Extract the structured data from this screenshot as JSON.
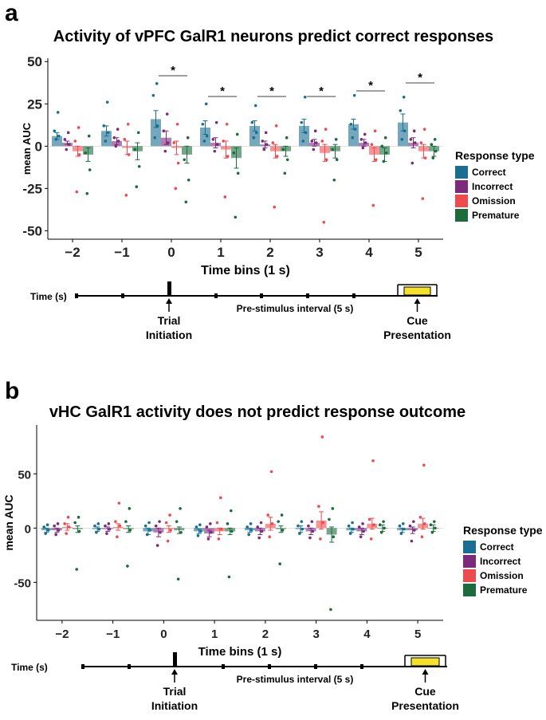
{
  "response_types": {
    "colors": {
      "Correct": "#1a6e91",
      "Incorrect": "#7b2a7c",
      "Omission": "#ee4b4f",
      "Premature": "#1b6b3c"
    }
  },
  "chart_data": [
    {
      "type": "bar",
      "panel": "a",
      "title": "Activity of vPFC GalR1 neurons predict correct responses",
      "xlabel": "Time bins (1 s)",
      "ylabel": "mean AUC",
      "ylim": [
        -55,
        52
      ],
      "yticks": [
        50,
        25,
        0,
        -25,
        -50
      ],
      "yticklabels": [
        "50",
        "25",
        "0",
        "-25",
        "-50"
      ],
      "categories": [
        "−2",
        "−1",
        "0",
        "1",
        "2",
        "3",
        "4",
        "5"
      ],
      "legend_title": "Response type",
      "legend_position": "right",
      "series": [
        {
          "name": "Correct",
          "values": [
            6,
            9,
            16,
            11,
            12,
            12,
            13,
            14
          ],
          "err": [
            2,
            3,
            5,
            4,
            3,
            4,
            3,
            5
          ],
          "points": [
            [
              4,
              6,
              9,
              20
            ],
            [
              3,
              8,
              12,
              26
            ],
            [
              5,
              12,
              30,
              37
            ],
            [
              3,
              6,
              13,
              25
            ],
            [
              5,
              8,
              14,
              24
            ],
            [
              3,
              8,
              14,
              29
            ],
            [
              5,
              10,
              13,
              30
            ],
            [
              4,
              9,
              21,
              29
            ]
          ]
        },
        {
          "name": "Incorrect",
          "values": [
            2,
            3,
            5,
            2,
            1,
            2,
            2,
            2
          ],
          "err": [
            1,
            2,
            4,
            3,
            2,
            2,
            2,
            3
          ],
          "points": [
            [
              -2,
              1,
              4,
              8
            ],
            [
              0,
              3,
              5,
              10
            ],
            [
              -3,
              2,
              9,
              19
            ],
            [
              -3,
              1,
              4,
              14
            ],
            [
              -2,
              1,
              3,
              8
            ],
            [
              -2,
              2,
              3,
              9
            ],
            [
              -1,
              2,
              4,
              7
            ],
            [
              -10,
              2,
              4,
              9
            ]
          ]
        },
        {
          "name": "Omission",
          "values": [
            -3,
            -1,
            -1,
            -2,
            -3,
            -4,
            -5,
            -3
          ],
          "err": [
            3,
            4,
            4,
            5,
            4,
            5,
            4,
            4
          ],
          "points": [
            [
              -27,
              -5,
              3,
              11
            ],
            [
              -29,
              -5,
              4,
              13
            ],
            [
              -25,
              -10,
              2,
              13
            ],
            [
              -30,
              -6,
              3,
              13
            ],
            [
              -36,
              -6,
              2,
              12
            ],
            [
              -45,
              -8,
              3,
              10
            ],
            [
              -35,
              -8,
              1,
              9
            ],
            [
              -31,
              -7,
              2,
              10
            ]
          ]
        },
        {
          "name": "Premature",
          "values": [
            -5,
            -3,
            -5,
            -7,
            -3,
            -3,
            -5,
            -3
          ],
          "err": [
            4,
            5,
            5,
            6,
            3,
            4,
            4,
            3
          ],
          "points": [
            [
              -28,
              -14,
              -4,
              6
            ],
            [
              -24,
              -12,
              -2,
              8
            ],
            [
              -33,
              -20,
              -8,
              5
            ],
            [
              -42,
              -16,
              -4,
              7
            ],
            [
              -16,
              -8,
              -2,
              5
            ],
            [
              -20,
              -8,
              -2,
              4
            ],
            [
              -9,
              -4,
              0,
              5
            ],
            [
              -7,
              -3,
              1,
              4
            ]
          ]
        }
      ],
      "annotations": [
        {
          "text": "*",
          "bin": "0"
        },
        {
          "text": "*",
          "bin": "1"
        },
        {
          "text": "*",
          "bin": "2"
        },
        {
          "text": "*",
          "bin": "3"
        },
        {
          "text": "*",
          "bin": "4"
        },
        {
          "text": "*",
          "bin": "5"
        }
      ]
    },
    {
      "type": "bar",
      "panel": "b",
      "title": "vHC GalR1 activity does not predict response outcome",
      "xlabel": "Time bins (1 s)",
      "ylabel": "mean AUC",
      "ylim": [
        -85,
        95
      ],
      "yticks": [
        50,
        0,
        -50
      ],
      "yticklabels": [
        "50",
        "0",
        "-50"
      ],
      "categories": [
        "−2",
        "−1",
        "0",
        "1",
        "2",
        "3",
        "4",
        "5"
      ],
      "legend_title": "Response type",
      "legend_position": "right",
      "series": [
        {
          "name": "Correct",
          "values": [
            -2,
            -1,
            -3,
            -3,
            -2,
            -1,
            -2,
            -2
          ],
          "err": [
            2,
            2,
            3,
            2,
            2,
            3,
            2,
            2
          ],
          "points": [
            [
              -5,
              -2,
              1,
              3
            ],
            [
              -4,
              -1,
              2,
              4
            ],
            [
              -6,
              -2,
              2,
              5
            ],
            [
              -7,
              -3,
              1,
              3
            ],
            [
              -6,
              -2,
              1,
              4
            ],
            [
              -5,
              -1,
              2,
              6
            ],
            [
              -5,
              -1,
              2,
              5
            ],
            [
              -5,
              -1,
              2,
              4
            ]
          ]
        },
        {
          "name": "Incorrect",
          "values": [
            -2,
            -1,
            -4,
            -5,
            -3,
            -3,
            -3,
            -2
          ],
          "err": [
            2,
            2,
            4,
            3,
            3,
            3,
            3,
            3
          ],
          "points": [
            [
              -6,
              -2,
              2,
              4
            ],
            [
              -5,
              -1,
              2,
              4
            ],
            [
              -16,
              -4,
              2,
              6
            ],
            [
              -10,
              -4,
              1,
              4
            ],
            [
              -9,
              -3,
              1,
              5
            ],
            [
              -9,
              -3,
              2,
              6
            ],
            [
              -8,
              -3,
              1,
              4
            ],
            [
              -12,
              -2,
              2,
              6
            ]
          ]
        },
        {
          "name": "Omission",
          "values": [
            1,
            1,
            -1,
            -3,
            4,
            7,
            4,
            4
          ],
          "err": [
            3,
            3,
            3,
            3,
            6,
            8,
            5,
            5
          ],
          "points": [
            [
              -5,
              1,
              4,
              10
            ],
            [
              -8,
              2,
              6,
              23
            ],
            [
              -12,
              -2,
              5,
              12
            ],
            [
              -10,
              -1,
              5,
              28
            ],
            [
              -8,
              4,
              12,
              52
            ],
            [
              -10,
              5,
              20,
              84
            ],
            [
              -10,
              3,
              8,
              62
            ],
            [
              -8,
              4,
              10,
              58
            ]
          ]
        },
        {
          "name": "Premature",
          "values": [
            -1,
            -1,
            -2,
            -3,
            -1,
            -6,
            0,
            0
          ],
          "err": [
            3,
            3,
            3,
            3,
            3,
            7,
            3,
            3
          ],
          "points": [
            [
              -38,
              -3,
              5,
              10
            ],
            [
              -35,
              -2,
              6,
              18
            ],
            [
              -47,
              -4,
              6,
              18
            ],
            [
              -45,
              -3,
              4,
              16
            ],
            [
              -33,
              -2,
              6,
              12
            ],
            [
              -75,
              -8,
              8,
              18
            ],
            [
              -4,
              0,
              3,
              6
            ],
            [
              -4,
              0,
              3,
              6
            ]
          ]
        }
      ]
    }
  ],
  "timelines": [
    {
      "time_label": "Time (s)",
      "interval_label": "Pre-stimulus interval (5 s)",
      "trial_label_1": "Trial",
      "trial_label_2": "Initiation",
      "cue_label_1": "Cue",
      "cue_label_2": "Presentation",
      "cue_color": "#f5e12a"
    },
    {
      "time_label": "Time (s)",
      "interval_label": "Pre-stimulus interval (5 s)",
      "trial_label_1": "Trial",
      "trial_label_2": "Initiation",
      "cue_label_1": "Cue",
      "cue_label_2": "Presentation",
      "cue_color": "#f5e12a"
    }
  ]
}
